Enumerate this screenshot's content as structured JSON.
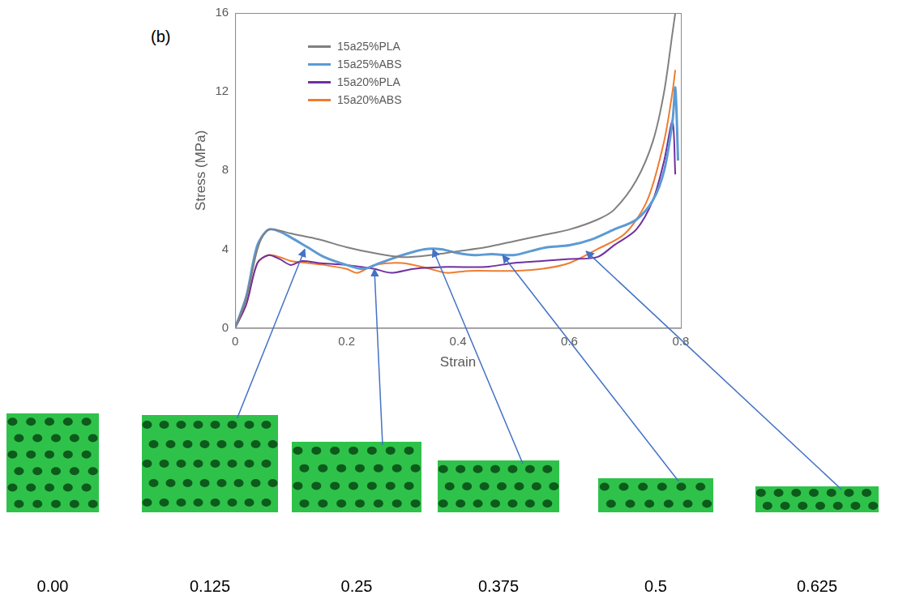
{
  "chart_data": {
    "type": "line",
    "panel": "(b)",
    "x_label": "Strain",
    "y_label": "Stress (MPa)",
    "xlim": [
      0,
      0.8
    ],
    "xticks": [
      0,
      0.2,
      0.4,
      0.6,
      0.8
    ],
    "ylim": [
      0,
      16
    ],
    "yticks": [
      0,
      4,
      8,
      12,
      16
    ],
    "grid": false,
    "legend": "upper left",
    "series": [
      {
        "name": "15a25%PLA",
        "color": "#808080",
        "x": [
          0,
          0.02,
          0.04,
          0.055,
          0.07,
          0.1,
          0.15,
          0.2,
          0.25,
          0.3,
          0.35,
          0.4,
          0.45,
          0.5,
          0.55,
          0.6,
          0.65,
          0.68,
          0.72,
          0.75,
          0.77,
          0.785,
          0.79
        ],
        "values": [
          0,
          1.5,
          4.0,
          4.9,
          5.0,
          4.8,
          4.5,
          4.1,
          3.8,
          3.6,
          3.7,
          3.9,
          4.1,
          4.4,
          4.7,
          5.0,
          5.5,
          6.0,
          7.5,
          9.5,
          12,
          15,
          16
        ]
      },
      {
        "name": "15a25%ABS",
        "color": "#5b9bd5",
        "x": [
          0,
          0.02,
          0.04,
          0.06,
          0.08,
          0.1,
          0.13,
          0.16,
          0.2,
          0.23,
          0.26,
          0.3,
          0.34,
          0.37,
          0.4,
          0.43,
          0.46,
          0.5,
          0.53,
          0.56,
          0.6,
          0.64,
          0.68,
          0.72,
          0.75,
          0.77,
          0.785,
          0.79,
          0.795
        ],
        "values": [
          0,
          1.6,
          4.2,
          5.0,
          4.9,
          4.6,
          4.1,
          3.6,
          3.2,
          3.0,
          3.3,
          3.7,
          4.0,
          4.0,
          3.8,
          3.7,
          3.75,
          3.7,
          3.9,
          4.1,
          4.2,
          4.5,
          5.0,
          5.5,
          6.5,
          8.0,
          10.5,
          12.2,
          8.5
        ]
      },
      {
        "name": "15a20%PLA",
        "color": "#7030a0",
        "x": [
          0,
          0.02,
          0.04,
          0.06,
          0.08,
          0.1,
          0.12,
          0.15,
          0.2,
          0.25,
          0.28,
          0.32,
          0.38,
          0.45,
          0.5,
          0.55,
          0.6,
          0.65,
          0.68,
          0.72,
          0.75,
          0.77,
          0.785,
          0.79
        ],
        "values": [
          0,
          1.2,
          3.3,
          3.7,
          3.5,
          3.2,
          3.4,
          3.3,
          3.2,
          3.0,
          2.8,
          3.0,
          3.1,
          3.1,
          3.3,
          3.4,
          3.5,
          3.6,
          4.2,
          5.0,
          6.5,
          8.5,
          10.5,
          7.8
        ]
      },
      {
        "name": "15a20%ABS",
        "color": "#ed7d31",
        "x": [
          0,
          0.02,
          0.04,
          0.06,
          0.08,
          0.1,
          0.13,
          0.16,
          0.2,
          0.22,
          0.25,
          0.3,
          0.35,
          0.38,
          0.42,
          0.5,
          0.55,
          0.6,
          0.65,
          0.7,
          0.74,
          0.77,
          0.785,
          0.79
        ],
        "values": [
          0,
          1.2,
          3.3,
          3.7,
          3.6,
          3.4,
          3.3,
          3.2,
          3.0,
          2.8,
          3.2,
          3.3,
          3.0,
          2.8,
          2.9,
          2.9,
          3.0,
          3.3,
          4.0,
          4.8,
          6.5,
          9.5,
          12,
          13.1
        ]
      }
    ],
    "snapshots": {
      "strain": [
        {
          "value": 0,
          "label": "0.00"
        },
        0.125,
        0.25,
        0.375,
        0.5,
        0.625
      ],
      "arrow_x": [
        null,
        0.125,
        0.25,
        0.355,
        0.48,
        0.63
      ],
      "arrow_y": [
        null,
        4.0,
        3.0,
        4.0,
        3.7,
        3.9
      ]
    }
  }
}
